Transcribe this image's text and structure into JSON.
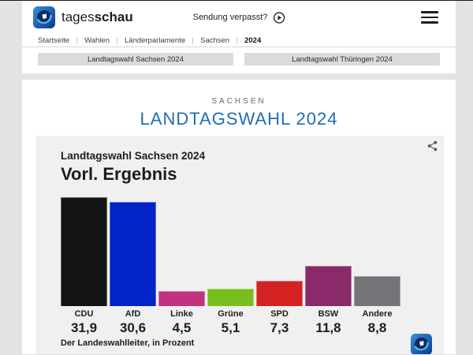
{
  "header": {
    "brand_regular": "tages",
    "brand_bold": "schau",
    "broadcast_link": "Sendung verpasst?"
  },
  "breadcrumb": {
    "items": [
      "Startseite",
      "Wahlen",
      "Länderparlamente",
      "Sachsen",
      "2024"
    ]
  },
  "tabs": {
    "sachsen": "Landtagswahl Sachsen 2024",
    "thueringen": "Landtagswahl Thüringen 2024"
  },
  "page": {
    "kicker": "SACHSEN",
    "title": "LANDTAGSWAHL 2024"
  },
  "chart_data": {
    "type": "bar",
    "title": "Landtagswahl Sachsen 2024",
    "subtitle": "Vorl. Ergebnis",
    "source": "Der Landeswahlleiter, in Prozent",
    "categories": [
      "CDU",
      "AfD",
      "Linke",
      "Grüne",
      "SPD",
      "BSW",
      "Andere"
    ],
    "values": [
      31.9,
      30.6,
      4.5,
      5.1,
      7.3,
      11.8,
      8.8
    ],
    "value_labels": [
      "31,9",
      "30,6",
      "4,5",
      "5,1",
      "7,3",
      "11,8",
      "8,8"
    ],
    "bar_colors": [
      "#141414",
      "#0223c8",
      "#c23280",
      "#79be1f",
      "#d42222",
      "#8a2a6b",
      "#747478"
    ],
    "unit": "percent",
    "xlabel": "",
    "ylabel": "",
    "ylim": [
      0,
      32
    ],
    "grid": false,
    "legend": false
  },
  "icons": {
    "brand_logo": "tagesschau-globe",
    "play": "play-circle",
    "menu": "hamburger",
    "share": "share-nodes"
  },
  "colors": {
    "accent_blue": "#1f6db4",
    "page_bg": "#e3e3e3",
    "panel_bg": "#f0f0f0",
    "tab_bg": "#dbdbdb",
    "text_dark": "#1d1d1b"
  }
}
